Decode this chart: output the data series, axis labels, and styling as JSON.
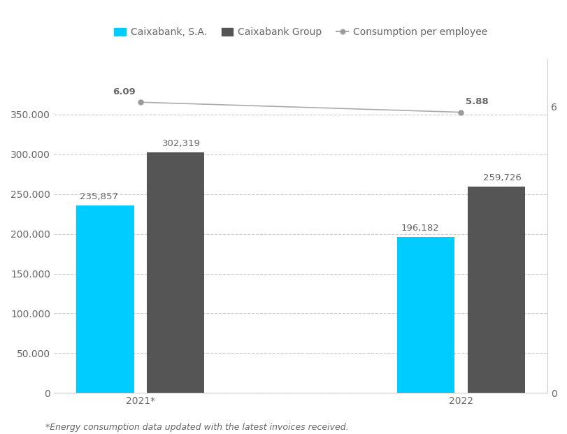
{
  "years": [
    "2021*",
    "2022"
  ],
  "caixabank_sa": [
    235857,
    196182
  ],
  "caixabank_group": [
    302319,
    259726
  ],
  "consumption_per_employee": [
    6.09,
    5.88
  ],
  "bar_color_sa": "#00CCFF",
  "bar_color_group": "#555555",
  "line_color": "#aaaaaa",
  "marker_color": "#999999",
  "background_color": "#ffffff",
  "ylim_left": [
    0,
    420000
  ],
  "ylim_right": [
    0,
    7.0
  ],
  "yticks_left": [
    0,
    50000,
    100000,
    150000,
    200000,
    250000,
    300000,
    350000
  ],
  "yticks_right": [
    0,
    6
  ],
  "legend_labels": [
    "Caixabank, S.A.",
    "Caixabank Group",
    "Consumption per employee"
  ],
  "footnote": "*Energy consumption data updated with the latest invoices received.",
  "bar_width": 0.18,
  "bar_gap": 0.04,
  "grid_color": "#cccccc",
  "text_color": "#666666",
  "annotation_fontsize": 9.5,
  "tick_fontsize": 10,
  "legend_fontsize": 10,
  "footnote_fontsize": 9
}
